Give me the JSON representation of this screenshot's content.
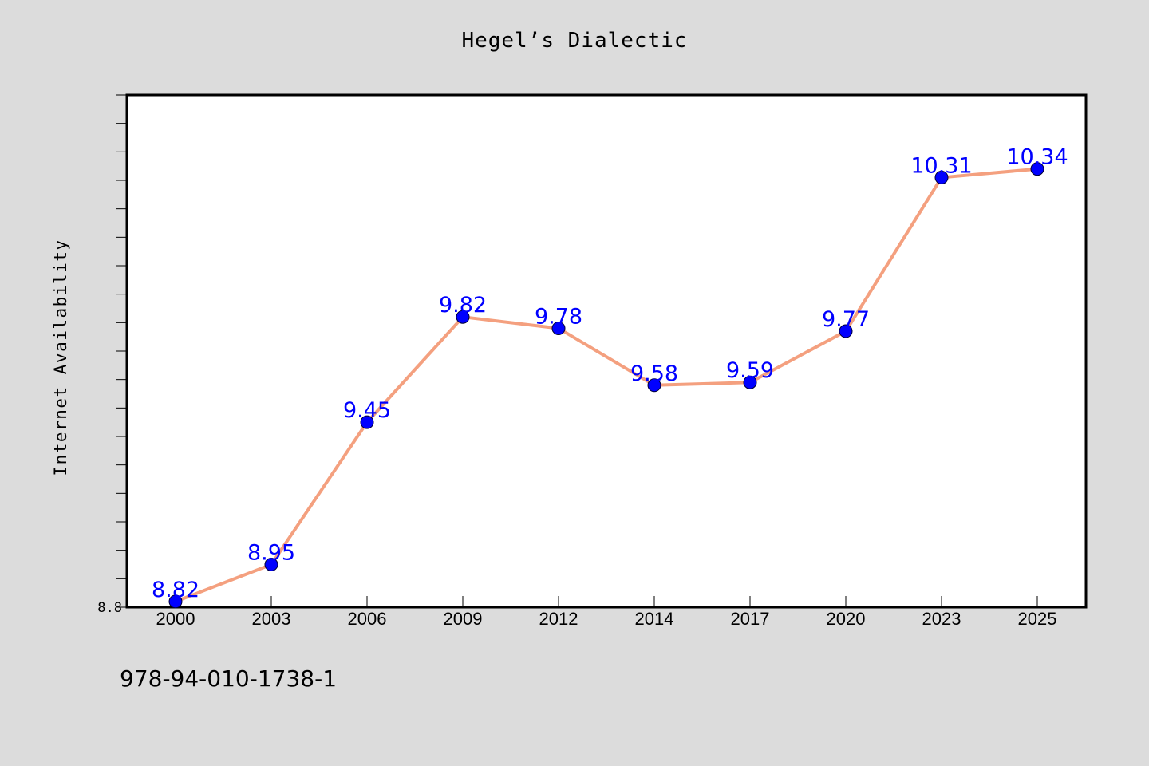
{
  "chart_data": {
    "type": "line",
    "title": "Hegel’s Dialectic",
    "xlabel": "",
    "ylabel": "Internet Availability",
    "categories": [
      "2000",
      "2003",
      "2006",
      "2009",
      "2012",
      "2014",
      "2017",
      "2020",
      "2023",
      "2025"
    ],
    "series": [
      {
        "values": [
          8.82,
          8.95,
          9.45,
          9.82,
          9.78,
          9.58,
          9.59,
          9.77,
          10.31,
          10.34
        ],
        "data_labels": [
          "8.82",
          "8.95",
          "9.45",
          "9.82",
          "9.78",
          "9.58",
          "9.59",
          "9.77",
          "10.31",
          "10.34"
        ],
        "line_color": "#f4a07f",
        "marker_color": "#0000ff",
        "label_color": "#0000ff"
      }
    ],
    "ylim": [
      8.8,
      10.6
    ],
    "y_tick_labels": [
      "8.8"
    ],
    "grid": false,
    "legend": "none"
  },
  "footer": {
    "isbn": "978-94-010-1738-1"
  },
  "colors": {
    "background": "#dcdcdc",
    "plot_area": "#ffffff",
    "axis": "#000000"
  }
}
